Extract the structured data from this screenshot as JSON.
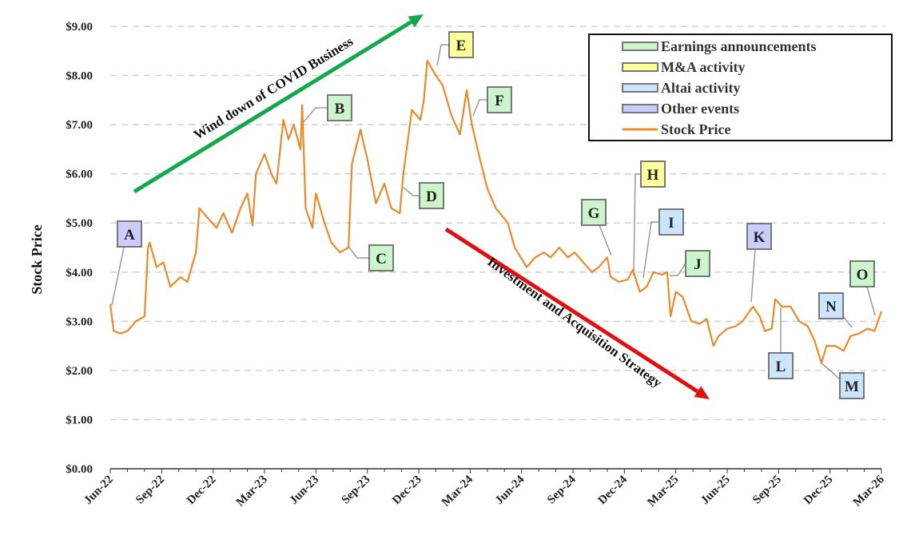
{
  "chart_data": {
    "type": "line",
    "title": "",
    "xlabel": "",
    "ylabel": "Stock Price",
    "ylim": [
      0,
      9
    ],
    "grid": true,
    "legend_position": "top-right",
    "x_unit": "months since Jun-22",
    "y_ticks": [
      "$0.00",
      "$1.00",
      "$2.00",
      "$3.00",
      "$4.00",
      "$5.00",
      "$6.00",
      "$7.00",
      "$8.00",
      "$9.00"
    ],
    "x_ticks": [
      "Jun-22",
      "Sep-22",
      "Dec-22",
      "Mar-23",
      "Jun-23",
      "Sep-23",
      "Dec-23",
      "Mar-24",
      "Jun-24",
      "Sep-24",
      "Dec-24",
      "Mar-25",
      "Jun-25",
      "Sep-25",
      "Dec-25",
      "Mar-26"
    ],
    "series": [
      {
        "name": "Stock Price",
        "color": "#E8892B",
        "x": [
          0,
          0.2,
          0.6,
          1.0,
          1.5,
          2.0,
          2.2,
          2.3,
          2.7,
          3.1,
          3.5,
          4.1,
          4.5,
          5.0,
          5.2,
          5.7,
          6.2,
          6.6,
          7.1,
          7.6,
          8.0,
          8.3,
          8.5,
          9.0,
          9.4,
          9.7,
          10.1,
          10.4,
          10.7,
          11.1,
          11.2,
          11.4,
          11.8,
          12.0,
          12.5,
          12.9,
          13.4,
          13.9,
          14.1,
          14.6,
          15.0,
          15.5,
          16.0,
          16.4,
          16.9,
          17.1,
          17.6,
          18.1,
          18.3,
          18.5,
          19.0,
          19.4,
          19.9,
          20.4,
          20.8,
          21.1,
          21.5,
          22.0,
          22.5,
          23.2,
          23.6,
          24.3,
          24.8,
          25.3,
          25.7,
          26.2,
          26.7,
          27.1,
          27.6,
          28.1,
          28.5,
          29.0,
          29.2,
          29.7,
          30.2,
          30.5,
          30.9,
          31.3,
          31.7,
          32.2,
          32.5,
          32.7,
          33.0,
          33.4,
          33.9,
          34.4,
          34.8,
          35.2,
          35.5,
          36.0,
          36.5,
          36.9,
          37.5,
          37.9,
          38.2,
          38.6,
          38.8,
          39.2,
          39.7,
          40.2,
          40.7,
          41.1,
          41.5,
          41.8,
          42.3,
          42.8,
          43.2,
          43.7,
          44.2,
          44.6,
          45.0
        ],
        "values": [
          3.35,
          2.8,
          2.75,
          2.8,
          3.0,
          3.1,
          4.5,
          4.6,
          4.1,
          4.2,
          3.7,
          3.9,
          3.8,
          4.4,
          5.3,
          5.1,
          4.9,
          5.2,
          4.8,
          5.3,
          5.6,
          4.95,
          6.0,
          6.4,
          6.0,
          5.8,
          7.1,
          6.7,
          7.0,
          6.5,
          7.4,
          5.3,
          4.9,
          5.6,
          5.0,
          4.6,
          4.4,
          4.5,
          6.2,
          6.9,
          6.3,
          5.4,
          5.8,
          5.3,
          5.2,
          6.0,
          7.3,
          7.1,
          7.5,
          8.3,
          8.0,
          7.8,
          7.2,
          6.8,
          7.7,
          7.0,
          6.4,
          5.7,
          5.3,
          5.0,
          4.5,
          4.1,
          4.3,
          4.4,
          4.3,
          4.5,
          4.3,
          4.4,
          4.2,
          4.0,
          4.1,
          4.3,
          3.9,
          3.8,
          3.85,
          4.05,
          3.6,
          3.7,
          4.0,
          3.95,
          4.0,
          3.1,
          3.6,
          3.5,
          3.0,
          2.95,
          3.05,
          2.5,
          2.7,
          2.85,
          2.9,
          3.0,
          3.3,
          3.1,
          2.8,
          2.85,
          3.45,
          3.3,
          3.3,
          3.0,
          2.9,
          2.6,
          2.15,
          2.5,
          2.5,
          2.4,
          2.7,
          2.75,
          2.85,
          2.8,
          3.2
        ]
      }
    ],
    "legend": [
      {
        "label": "Earnings announcements",
        "color": "#CCF5CC"
      },
      {
        "label": "M&A activity",
        "color": "#FFFF99"
      },
      {
        "label": "Altai activity",
        "color": "#CCE5FF"
      },
      {
        "label": "Other events",
        "color": "#CCCCFF"
      },
      {
        "label": "Stock Price",
        "color": "#E8892B"
      }
    ],
    "annotations": [
      {
        "letter": "A",
        "category": "Other events",
        "color": "#CCCCFF"
      },
      {
        "letter": "B",
        "category": "Earnings announcements",
        "color": "#CCF5CC"
      },
      {
        "letter": "C",
        "category": "Earnings announcements",
        "color": "#CCF5CC"
      },
      {
        "letter": "D",
        "category": "Earnings announcements",
        "color": "#CCF5CC"
      },
      {
        "letter": "E",
        "category": "M&A activity",
        "color": "#FFFF99"
      },
      {
        "letter": "F",
        "category": "Earnings announcements",
        "color": "#CCF5CC"
      },
      {
        "letter": "G",
        "category": "Earnings announcements",
        "color": "#CCF5CC"
      },
      {
        "letter": "H",
        "category": "M&A activity",
        "color": "#FFFF99"
      },
      {
        "letter": "I",
        "category": "Altai activity",
        "color": "#CCE5FF"
      },
      {
        "letter": "J",
        "category": "Earnings announcements",
        "color": "#CCF5CC"
      },
      {
        "letter": "K",
        "category": "Other events",
        "color": "#CCCCFF"
      },
      {
        "letter": "L",
        "category": "Altai activity",
        "color": "#CCE5FF"
      },
      {
        "letter": "M",
        "category": "Altai activity",
        "color": "#CCE5FF"
      },
      {
        "letter": "N",
        "category": "Altai activity",
        "color": "#CCE5FF"
      },
      {
        "letter": "O",
        "category": "Earnings announcements",
        "color": "#CCF5CC"
      }
    ],
    "trend_arrows": [
      {
        "label": "Wind down of COVID Business",
        "color": "#13A84A"
      },
      {
        "label": "Investment and Acquisition Strategy",
        "color": "#E01010"
      }
    ]
  }
}
